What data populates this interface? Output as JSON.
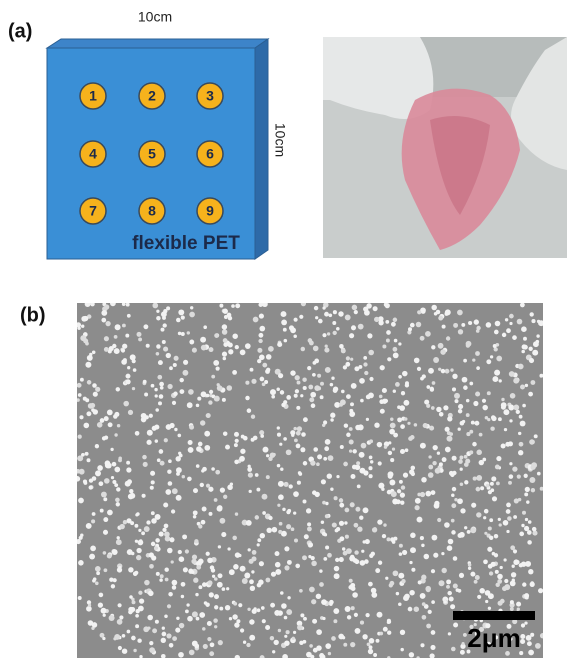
{
  "panel_a": {
    "label": "(a)",
    "width_label": "10cm",
    "height_label": "10cm",
    "spots": [
      "1",
      "2",
      "3",
      "4",
      "5",
      "6",
      "7",
      "8",
      "9"
    ],
    "substrate_label": "flexible PET"
  },
  "panel_b": {
    "label": "(b)",
    "scale_bar_label": "2μm"
  }
}
